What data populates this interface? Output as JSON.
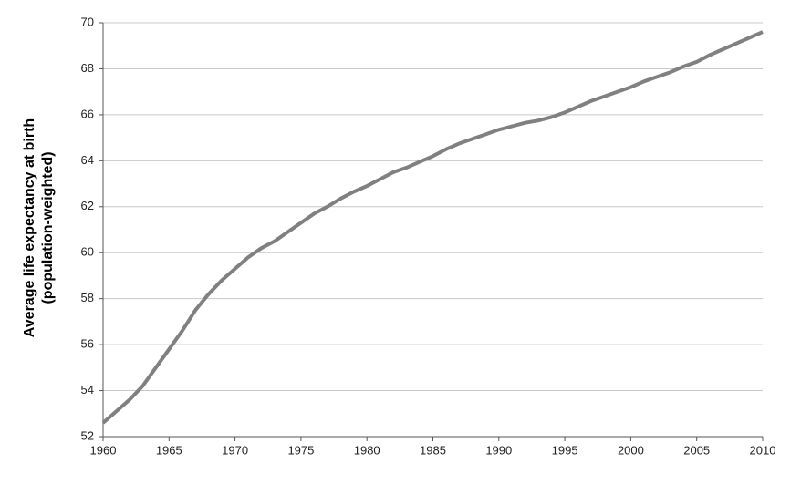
{
  "chart_data": {
    "type": "line",
    "ylabel": [
      "Average life expectancy at birth",
      "(population-weighted)"
    ],
    "x": [
      1960,
      1961,
      1962,
      1963,
      1964,
      1965,
      1966,
      1967,
      1968,
      1969,
      1970,
      1971,
      1972,
      1973,
      1974,
      1975,
      1976,
      1977,
      1978,
      1979,
      1980,
      1981,
      1982,
      1983,
      1984,
      1985,
      1986,
      1987,
      1988,
      1989,
      1990,
      1991,
      1992,
      1993,
      1994,
      1995,
      1996,
      1997,
      1998,
      1999,
      2000,
      2001,
      2002,
      2003,
      2004,
      2005,
      2006,
      2007,
      2008,
      2009,
      2010
    ],
    "series": [
      {
        "color": "#808080",
        "values": [
          52.6,
          53.1,
          53.6,
          54.2,
          55.0,
          55.8,
          56.6,
          57.5,
          58.2,
          58.8,
          59.3,
          59.8,
          60.2,
          60.5,
          60.9,
          61.3,
          61.7,
          62.0,
          62.35,
          62.65,
          62.9,
          63.2,
          63.5,
          63.7,
          63.95,
          64.2,
          64.5,
          64.75,
          64.95,
          65.15,
          65.35,
          65.5,
          65.65,
          65.75,
          65.9,
          66.1,
          66.35,
          66.6,
          66.8,
          67.0,
          67.2,
          67.45,
          67.65,
          67.85,
          68.1,
          68.3,
          68.6,
          68.85,
          69.1,
          69.35,
          69.6
        ]
      }
    ],
    "xlim": [
      1960,
      2010
    ],
    "xticks": [
      1960,
      1965,
      1970,
      1975,
      1980,
      1985,
      1990,
      1995,
      2000,
      2005,
      2010
    ],
    "ylim": [
      52,
      70
    ],
    "yticks": [
      52,
      54,
      56,
      58,
      60,
      62,
      64,
      66,
      68,
      70
    ],
    "grid": true
  }
}
